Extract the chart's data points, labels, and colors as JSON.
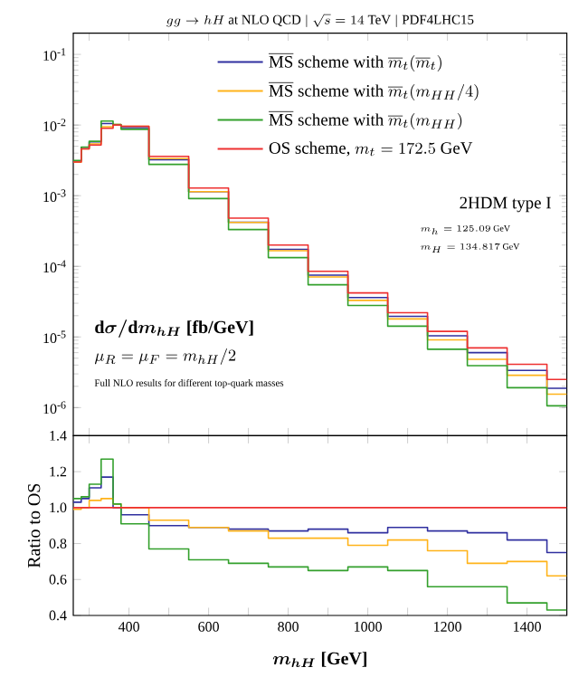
{
  "chart_data": [
    {
      "type": "histogram",
      "title": "gg \\to hH\\ \\text{at NLO QCD}\\ |\\ \\sqrt{s} = 14\\ \\text{TeV}\\ |\\ \\text{PDF4LHC15}",
      "annotations": [
        "\\text{2HDM type I}",
        "m_h = 125.09\\ \\text{GeV}",
        "m_H = 134.817\\ \\text{GeV}",
        "\\boldsymbol{\\mathrm{d}\\sigma/\\mathrm{d}m_{hH}}\\ \\textbf{[fb/GeV]}",
        "\\mu_R = \\mu_F = m_{hH}/2",
        "\\text{Full NLO results for different top-quark masses}"
      ],
      "bins": [
        260,
        280,
        300,
        330,
        360,
        380,
        450,
        550,
        650,
        750,
        850,
        950,
        1050,
        1150,
        1250,
        1350,
        1450,
        1500
      ],
      "series": [
        {
          "name": "\\overline{\\mathrm{MS}}\\ \\text{scheme with}\\ \\overline{m}_t(\\overline{m}_t)",
          "color": "#3030a0",
          "values": [
            0.00309,
            0.00483,
            0.00577,
            0.0105,
            0.01,
            0.0092,
            0.00324,
            0.00114,
            0.000422,
            0.000174,
            7.5e-05,
            3.61e-05,
            1.96e-05,
            1.04e-05,
            6e-06,
            3.36e-06,
            1.88e-06
          ]
        },
        {
          "name": "\\overline{\\mathrm{MS}}\\ \\text{scheme with}\\ \\overline{m}_t(m_{HH}/4)",
          "color": "#ffb31a",
          "values": [
            0.00297,
            0.0046,
            0.00541,
            0.00945,
            0.0102,
            0.0096,
            0.00335,
            0.00114,
            0.000418,
            0.000166,
            7.06e-05,
            3.3e-05,
            1.8e-05,
            9.1e-06,
            4.83e-06,
            2.87e-06,
            1.55e-06
          ]
        },
        {
          "name": "\\overline{\\mathrm{MS}}\\ \\text{scheme with}\\ \\overline{m}_t(m_{HH})",
          "color": "#33a02c",
          "values": [
            0.00315,
            0.00488,
            0.00588,
            0.0114,
            0.0102,
            0.0087,
            0.00277,
            0.00091,
            0.000331,
            0.000133,
            5.48e-05,
            2.79e-05,
            1.42e-05,
            6.7e-06,
            3.92e-06,
            1.91e-06,
            1.06e-06
          ]
        },
        {
          "name": "\\text{OS scheme,}\\ m_t = 172.5\\ \\text{GeV}",
          "color": "#ee3030",
          "values": [
            0.003,
            0.0046,
            0.0052,
            0.009,
            0.01,
            0.0096,
            0.0036,
            0.00128,
            0.00048,
            0.0002,
            8.5e-05,
            4.2e-05,
            2.2e-05,
            1.2e-05,
            7e-06,
            4.1e-06,
            2.5e-06
          ]
        }
      ],
      "xlim": [
        260,
        1500
      ],
      "ylim": [
        4e-07,
        0.2
      ],
      "xticks": [
        {
          "value": 300,
          "label": null
        },
        {
          "value": 400,
          "label": null
        },
        {
          "value": 500,
          "label": null
        },
        {
          "value": 600,
          "label": null
        },
        {
          "value": 700,
          "label": null
        },
        {
          "value": 800,
          "label": null
        },
        {
          "value": 900,
          "label": null
        },
        {
          "value": 1000,
          "label": null
        },
        {
          "value": 1100,
          "label": null
        },
        {
          "value": 1200,
          "label": null
        },
        {
          "value": 1300,
          "label": null
        },
        {
          "value": 1400,
          "label": null
        }
      ],
      "yticks": [
        {
          "value": 1e-06,
          "label": "10$^{-6}$"
        },
        {
          "value": 1e-05,
          "label": "10$^{-5}$"
        },
        {
          "value": 0.0001,
          "label": "10$^{-4}$"
        },
        {
          "value": 0.001,
          "label": "10$^{-3}$"
        },
        {
          "value": 0.01,
          "label": "10$^{-2}$"
        },
        {
          "value": 0.1,
          "label": "10$^{-1}$"
        }
      ],
      "log": true,
      "tick_labels": "y",
      "legend": "top right"
    },
    {
      "type": "histogram",
      "ylabel": "Ratio to OS",
      "xlabel": "\\boldsymbol{m_{hH}}\\ \\textbf{[GeV]}",
      "bins": [
        260,
        280,
        300,
        330,
        360,
        380,
        450,
        550,
        650,
        750,
        850,
        950,
        1050,
        1150,
        1250,
        1350,
        1450,
        1500
      ],
      "series": [
        {
          "color": "#3030a0",
          "values": [
            1.03,
            1.05,
            1.11,
            1.17,
            1.0,
            0.96,
            0.9,
            0.89,
            0.88,
            0.87,
            0.88,
            0.86,
            0.89,
            0.87,
            0.86,
            0.82,
            0.75
          ]
        },
        {
          "color": "#ffb31a",
          "values": [
            0.99,
            1.0,
            1.04,
            1.05,
            1.02,
            1.0,
            0.93,
            0.89,
            0.87,
            0.83,
            0.83,
            0.79,
            0.82,
            0.76,
            0.69,
            0.7,
            0.62
          ]
        },
        {
          "color": "#33a02c",
          "values": [
            1.05,
            1.06,
            1.13,
            1.27,
            1.02,
            0.91,
            0.77,
            0.71,
            0.69,
            0.67,
            0.65,
            0.67,
            0.65,
            0.56,
            0.56,
            0.47,
            0.43
          ]
        }
      ],
      "ref_lines": [
        {
          "axis": "y",
          "value": 1.0,
          "color": "#ee3030"
        }
      ],
      "xlim": [
        260,
        1500
      ],
      "ylim": [
        0.4,
        1.4
      ],
      "xticks": [
        {
          "value": 300,
          "label": null
        },
        {
          "value": 400,
          "label": "400"
        },
        {
          "value": 500,
          "label": null
        },
        {
          "value": 600,
          "label": "600"
        },
        {
          "value": 700,
          "label": null
        },
        {
          "value": 800,
          "label": "800"
        },
        {
          "value": 900,
          "label": null
        },
        {
          "value": 1000,
          "label": "1000"
        },
        {
          "value": 1100,
          "label": null
        },
        {
          "value": 1200,
          "label": "1200"
        },
        {
          "value": 1300,
          "label": null
        },
        {
          "value": 1400,
          "label": "1400"
        }
      ],
      "yticks": [
        {
          "value": 0.4,
          "label": "0.4"
        },
        {
          "value": 0.6,
          "label": "0.6"
        },
        {
          "value": 0.8,
          "label": "0.8"
        },
        {
          "value": 1.0,
          "label": "1.0"
        },
        {
          "value": 1.2,
          "label": "1.2"
        },
        {
          "value": 1.4,
          "label": "1.4"
        }
      ]
    }
  ]
}
